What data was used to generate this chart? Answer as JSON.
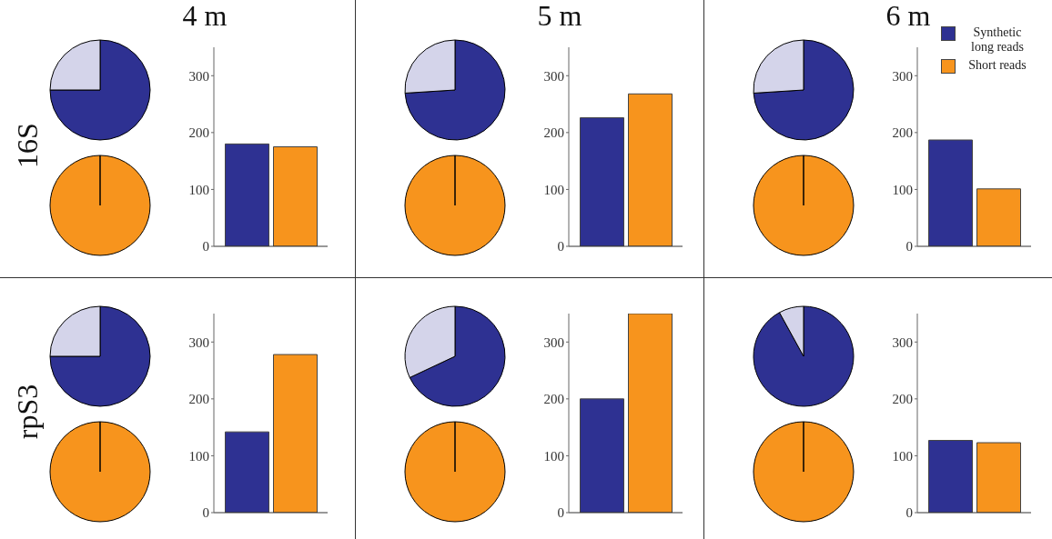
{
  "chart_data": [
    {
      "type": "pie",
      "ylabel": "16S",
      "categories": [
        null,
        null
      ],
      "values": [
        75,
        25
      ],
      "colors": [
        "#2e3192",
        "#d4d4ea"
      ]
    },
    {
      "type": "pie",
      "categories": [
        null
      ],
      "values": [
        100
      ],
      "colors": [
        "#f7941d"
      ]
    },
    {
      "type": "bar",
      "title": "4 m",
      "categories": [
        null
      ],
      "series": [
        {
          "color": "#2e3192",
          "values": [
            180
          ]
        },
        {
          "color": "#f7941d",
          "values": [
            175
          ]
        }
      ],
      "ylim": [
        0,
        350
      ],
      "yticks": [
        0,
        100,
        200,
        300
      ]
    },
    {
      "type": "pie",
      "categories": [
        null,
        null
      ],
      "values": [
        74,
        26
      ],
      "colors": [
        "#2e3192",
        "#d4d4ea"
      ]
    },
    {
      "type": "pie",
      "categories": [
        null
      ],
      "values": [
        100
      ],
      "colors": [
        "#f7941d"
      ]
    },
    {
      "type": "bar",
      "title": "5 m",
      "categories": [
        null
      ],
      "series": [
        {
          "color": "#2e3192",
          "values": [
            226
          ]
        },
        {
          "color": "#f7941d",
          "values": [
            268
          ]
        }
      ],
      "ylim": [
        0,
        350
      ],
      "yticks": [
        0,
        100,
        200,
        300
      ]
    },
    {
      "type": "pie",
      "categories": [
        null,
        null
      ],
      "values": [
        74,
        26
      ],
      "colors": [
        "#2e3192",
        "#d4d4ea"
      ]
    },
    {
      "type": "pie",
      "categories": [
        null
      ],
      "values": [
        100
      ],
      "colors": [
        "#f7941d"
      ]
    },
    {
      "type": "bar",
      "title": "6 m",
      "categories": [
        null
      ],
      "series": [
        {
          "name": "Synthetic long reads",
          "color": "#2e3192",
          "values": [
            187
          ]
        },
        {
          "name": "Short reads",
          "color": "#f7941d",
          "values": [
            101
          ]
        }
      ],
      "ylim": [
        0,
        350
      ],
      "yticks": [
        0,
        100,
        200,
        300
      ],
      "legend": "top right"
    },
    {
      "type": "pie",
      "ylabel": "rpS3",
      "categories": [
        null,
        null
      ],
      "values": [
        75,
        25
      ],
      "colors": [
        "#2e3192",
        "#d4d4ea"
      ]
    },
    {
      "type": "pie",
      "categories": [
        null
      ],
      "values": [
        100
      ],
      "colors": [
        "#f7941d"
      ]
    },
    {
      "type": "bar",
      "categories": [
        null
      ],
      "series": [
        {
          "color": "#2e3192",
          "values": [
            142
          ]
        },
        {
          "color": "#f7941d",
          "values": [
            278
          ]
        }
      ],
      "ylim": [
        0,
        350
      ],
      "yticks": [
        0,
        100,
        200,
        300
      ]
    },
    {
      "type": "pie",
      "categories": [
        null,
        null
      ],
      "values": [
        68,
        32
      ],
      "colors": [
        "#2e3192",
        "#d4d4ea"
      ]
    },
    {
      "type": "pie",
      "categories": [
        null
      ],
      "values": [
        100
      ],
      "colors": [
        "#f7941d"
      ]
    },
    {
      "type": "bar",
      "categories": [
        null
      ],
      "series": [
        {
          "color": "#2e3192",
          "values": [
            200
          ]
        },
        {
          "color": "#f7941d",
          "values": [
            350
          ]
        }
      ],
      "ylim": [
        0,
        350
      ],
      "yticks": [
        0,
        100,
        200,
        300
      ]
    },
    {
      "type": "pie",
      "categories": [
        null,
        null
      ],
      "values": [
        92,
        8
      ],
      "colors": [
        "#2e3192",
        "#d4d4ea"
      ]
    },
    {
      "type": "pie",
      "categories": [
        null
      ],
      "values": [
        100
      ],
      "colors": [
        "#f7941d"
      ]
    },
    {
      "type": "bar",
      "categories": [
        null
      ],
      "series": [
        {
          "color": "#2e3192",
          "values": [
            127
          ]
        },
        {
          "color": "#f7941d",
          "values": [
            123
          ]
        }
      ],
      "ylim": [
        0,
        350
      ],
      "yticks": [
        0,
        100,
        200,
        300
      ]
    }
  ]
}
